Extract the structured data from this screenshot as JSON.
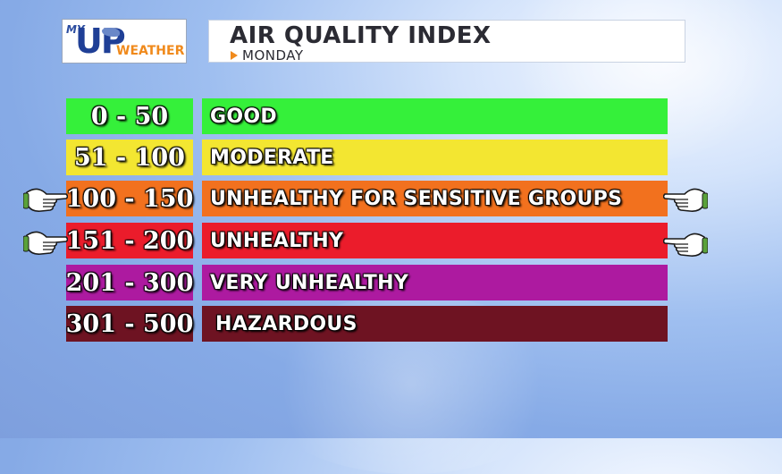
{
  "logo": {
    "my": "MY",
    "up": "UP",
    "weather": "WEATHER"
  },
  "title": "AIR QUALITY INDEX",
  "subtitle": "MONDAY",
  "colors": {
    "good": "#35f03a",
    "moderate": "#f3e631",
    "sensitive": "#f2711e",
    "unhealthy": "#eb1c2b",
    "very_unhealthy": "#ad1aa0",
    "hazardous": "#6e1322",
    "accent": "#f08a1c"
  },
  "rows": [
    {
      "range": "0 - 50",
      "label": "GOOD"
    },
    {
      "range": "51 - 100",
      "label": "MODERATE"
    },
    {
      "range": "100 - 150",
      "label": "UNHEALTHY FOR SENSITIVE GROUPS"
    },
    {
      "range": "151 - 200",
      "label": "UNHEALTHY"
    },
    {
      "range": "201 - 300",
      "label": "VERY UNHEALTHY"
    },
    {
      "range": "301 - 500",
      "label": "HAZARDOUS"
    }
  ],
  "icons": [
    "pointing-hand-icon"
  ]
}
